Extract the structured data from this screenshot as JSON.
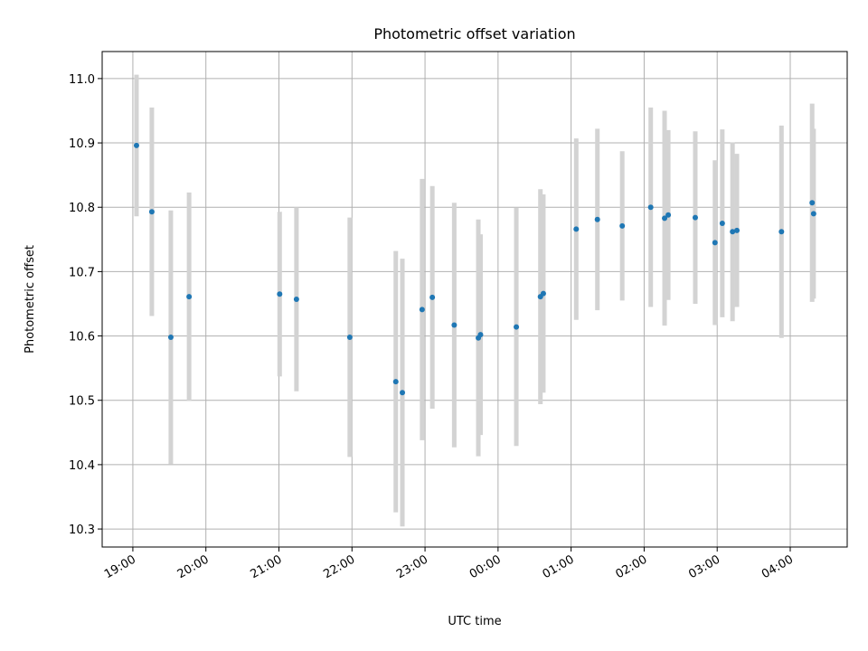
{
  "chart_data": {
    "type": "scatter",
    "title": "Photometric offset variation",
    "xlabel": "UTC time",
    "ylabel": "Photometric offset",
    "grid": true,
    "xlim_hours": [
      18.58,
      28.78
    ],
    "ylim": [
      10.272,
      11.042
    ],
    "x_tick_hours": [
      19,
      20,
      21,
      22,
      23,
      24,
      25,
      26,
      27,
      28
    ],
    "x_tick_labels": [
      "19:00",
      "20:00",
      "21:00",
      "22:00",
      "23:00",
      "00:00",
      "01:00",
      "02:00",
      "03:00",
      "04:00"
    ],
    "y_ticks": [
      10.3,
      10.4,
      10.5,
      10.6,
      10.7,
      10.8,
      10.9,
      11.0
    ],
    "y_tick_labels": [
      "10.3",
      "10.4",
      "10.5",
      "10.6",
      "10.7",
      "10.8",
      "10.9",
      "11.0"
    ],
    "marker_color": "#1f77b4",
    "errorbar_color": "#d3d3d3",
    "points": [
      {
        "t": 19.05,
        "y": 10.896,
        "err": 0.11
      },
      {
        "t": 19.26,
        "y": 10.793,
        "err": 0.162
      },
      {
        "t": 19.52,
        "y": 10.598,
        "err": 0.197
      },
      {
        "t": 19.77,
        "y": 10.661,
        "err": 0.162
      },
      {
        "t": 21.01,
        "y": 10.665,
        "err": 0.128
      },
      {
        "t": 21.24,
        "y": 10.657,
        "err": 0.143
      },
      {
        "t": 21.97,
        "y": 10.598,
        "err": 0.186
      },
      {
        "t": 22.6,
        "y": 10.529,
        "err": 0.203
      },
      {
        "t": 22.69,
        "y": 10.512,
        "err": 0.208
      },
      {
        "t": 22.96,
        "y": 10.641,
        "err": 0.203
      },
      {
        "t": 23.1,
        "y": 10.66,
        "err": 0.173
      },
      {
        "t": 23.4,
        "y": 10.617,
        "err": 0.19
      },
      {
        "t": 23.73,
        "y": 10.597,
        "err": 0.184
      },
      {
        "t": 23.76,
        "y": 10.602,
        "err": 0.156
      },
      {
        "t": 24.25,
        "y": 10.614,
        "err": 0.185
      },
      {
        "t": 24.58,
        "y": 10.661,
        "err": 0.167
      },
      {
        "t": 24.62,
        "y": 10.666,
        "err": 0.154
      },
      {
        "t": 25.07,
        "y": 10.766,
        "err": 0.141
      },
      {
        "t": 25.36,
        "y": 10.781,
        "err": 0.141
      },
      {
        "t": 25.7,
        "y": 10.771,
        "err": 0.116
      },
      {
        "t": 26.09,
        "y": 10.8,
        "err": 0.155
      },
      {
        "t": 26.28,
        "y": 10.783,
        "err": 0.167
      },
      {
        "t": 26.33,
        "y": 10.788,
        "err": 0.132
      },
      {
        "t": 26.7,
        "y": 10.784,
        "err": 0.134
      },
      {
        "t": 26.97,
        "y": 10.745,
        "err": 0.128
      },
      {
        "t": 27.07,
        "y": 10.775,
        "err": 0.146
      },
      {
        "t": 27.21,
        "y": 10.762,
        "err": 0.139
      },
      {
        "t": 27.27,
        "y": 10.764,
        "err": 0.119
      },
      {
        "t": 27.88,
        "y": 10.762,
        "err": 0.165
      },
      {
        "t": 28.3,
        "y": 10.807,
        "err": 0.154
      },
      {
        "t": 28.32,
        "y": 10.79,
        "err": 0.132
      }
    ]
  }
}
